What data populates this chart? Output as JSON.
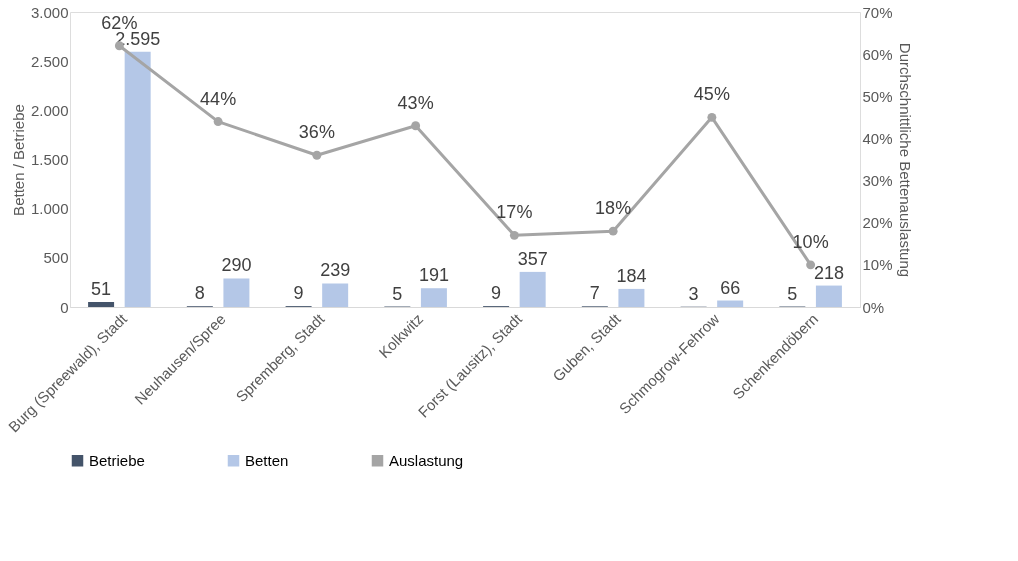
{
  "chart_data": {
    "type": "bar",
    "categories": [
      "Burg (Spreewald), Stadt",
      "Neuhausen/Spree",
      "Spremberg, Stadt",
      "Kolkwitz",
      "Forst (Lausitz), Stadt",
      "Guben, Stadt",
      "Schmogrow-Fehrow",
      "Schenkendöbern"
    ],
    "series": [
      {
        "name": "Betriebe",
        "color": "#44546a",
        "values": [
          51,
          8,
          9,
          5,
          9,
          7,
          3,
          5
        ],
        "value_labels": [
          "51",
          "8",
          "9",
          "5",
          "9",
          "7",
          "3",
          "5"
        ]
      },
      {
        "name": "Betten",
        "color": "#b4c7e7",
        "values": [
          2595,
          290,
          239,
          191,
          357,
          184,
          66,
          218
        ],
        "value_labels": [
          "2.595",
          "290",
          "239",
          "191",
          "357",
          "184",
          "66",
          "218"
        ]
      },
      {
        "name": "Auslastung",
        "type": "line",
        "axis": "y2",
        "marker": "circle",
        "line_style": "solid",
        "color": "#a5a5a5",
        "values": [
          62,
          44,
          36,
          43,
          17,
          18,
          45,
          10
        ],
        "value_labels": [
          "62%",
          "44%",
          "36%",
          "43%",
          "17%",
          "18%",
          "45%",
          "10%"
        ]
      }
    ],
    "ylabel": "Betten / Betriebe",
    "y2label": "Durchschnittliche Bettenauslastung",
    "ylim": [
      0,
      3000
    ],
    "yticks": [
      {
        "value": 0,
        "label": "0"
      },
      {
        "value": 500,
        "label": "500"
      },
      {
        "value": 1000,
        "label": "1.000"
      },
      {
        "value": 1500,
        "label": "1.500"
      },
      {
        "value": 2000,
        "label": "2.000"
      },
      {
        "value": 2500,
        "label": "2.500"
      },
      {
        "value": 3000,
        "label": "3.000"
      }
    ],
    "y2lim": [
      0,
      70
    ],
    "y2ticks": [
      {
        "value": 0,
        "label": "0%"
      },
      {
        "value": 10,
        "label": "10%"
      },
      {
        "value": 20,
        "label": "20%"
      },
      {
        "value": 30,
        "label": "30%"
      },
      {
        "value": 40,
        "label": "40%"
      },
      {
        "value": 50,
        "label": "50%"
      },
      {
        "value": 60,
        "label": "60%"
      },
      {
        "value": 70,
        "label": "70%"
      }
    ],
    "grid": false,
    "legend": "bottom"
  }
}
